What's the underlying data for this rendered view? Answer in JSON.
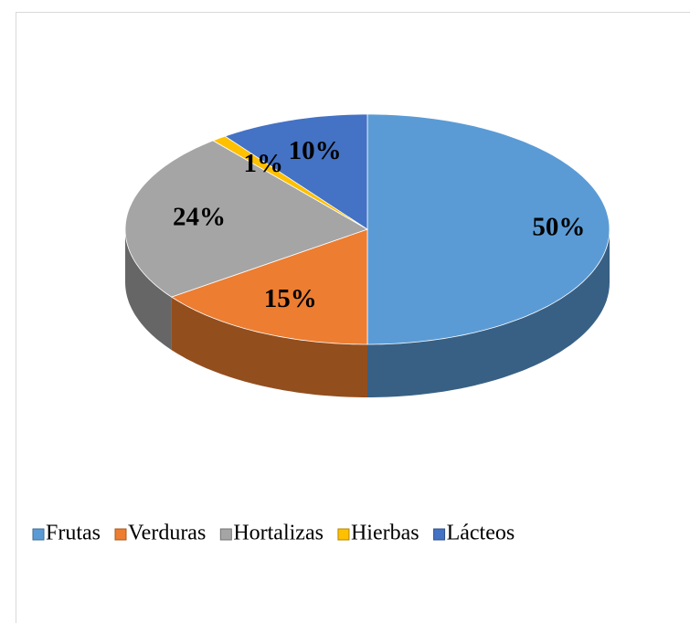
{
  "chart_data": {
    "type": "pie3d",
    "categories": [
      "Frutas",
      "Verduras",
      "Hortalizas",
      "Hierbas",
      "Lácteos"
    ],
    "values": [
      50,
      15,
      24,
      1,
      10
    ],
    "value_labels": [
      "50%",
      "15%",
      "24%",
      "1%",
      "10%"
    ],
    "colors": [
      "#5b9bd5",
      "#ed7d31",
      "#a5a5a5",
      "#ffc000",
      "#4472c4"
    ],
    "legend": "bottom"
  }
}
